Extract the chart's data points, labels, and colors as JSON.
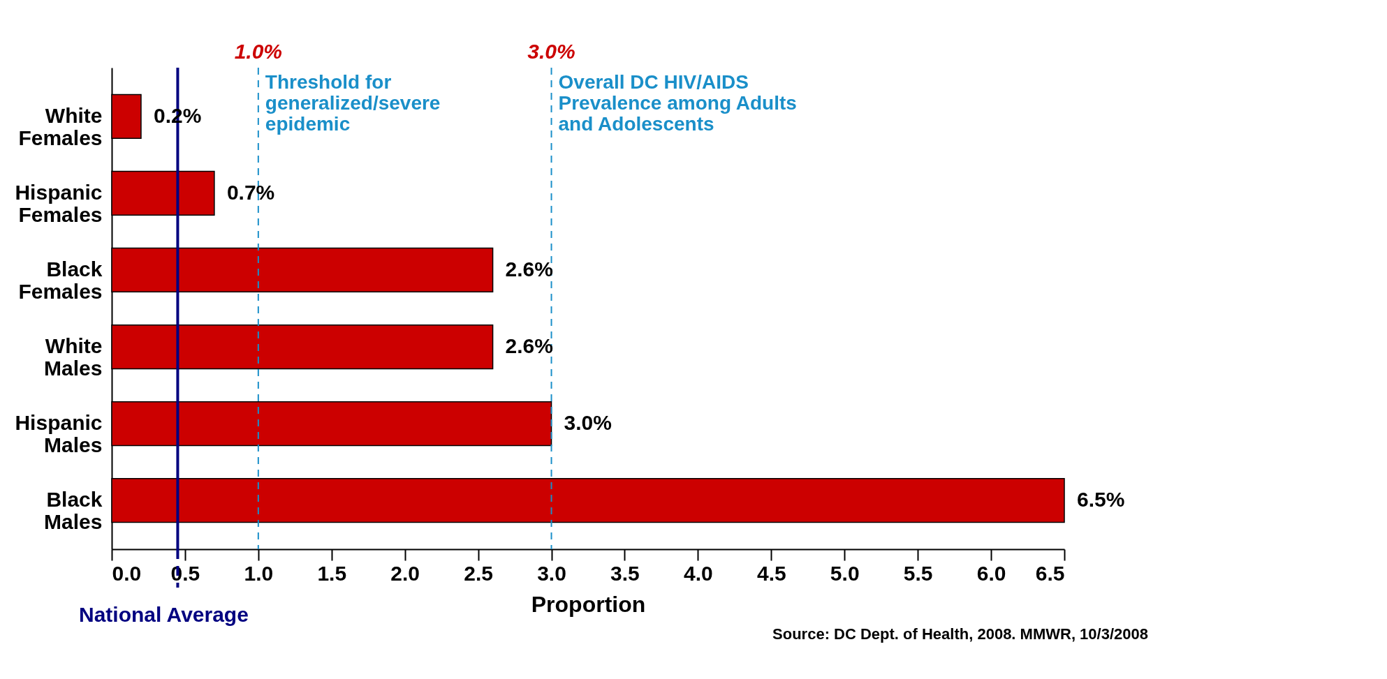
{
  "chart_data": {
    "type": "bar",
    "orientation": "horizontal",
    "categories": [
      "White Females",
      "Hispanic Females",
      "Black Females",
      "White Males",
      "Hispanic Males",
      "Black Males"
    ],
    "values": [
      0.2,
      0.7,
      2.6,
      2.6,
      3.0,
      6.5
    ],
    "value_labels": [
      "0.2%",
      "0.7%",
      "2.6%",
      "2.6%",
      "3.0%",
      "6.5%"
    ],
    "color": "#cc0000",
    "xlabel": "Proportion",
    "xlim": [
      0,
      6.5
    ],
    "xticks": [
      {
        "value": 0,
        "label": "0.0"
      },
      0.5,
      {
        "value": 1,
        "label": "1.0"
      },
      1.5,
      {
        "value": 2,
        "label": "2.0"
      },
      2.5,
      {
        "value": 3,
        "label": "3.0"
      },
      3.5,
      {
        "value": 4,
        "label": "4.0"
      },
      4.5,
      {
        "value": 5,
        "label": "5.0"
      },
      5.5,
      {
        "value": 6,
        "label": "6.0"
      },
      6.5
    ],
    "ref_lines": [
      {
        "axis": "x",
        "value": 0.45,
        "label": "National Average",
        "color": "#000080",
        "line_style": "solid"
      },
      {
        "axis": "x",
        "value": 1.0,
        "label": "Threshold for\ngeneralized/severe\nepidemic",
        "color": "#1a8fc9",
        "line_style": "dashed"
      },
      {
        "axis": "x",
        "value": 3.0,
        "label": "Overall DC HIV/AIDS\nPrevalence among Adults\nand Adolescents",
        "color": "#1a8fc9",
        "line_style": "dashed"
      }
    ],
    "annotations": [
      "1.0%",
      "3.0%",
      "Source: DC Dept. of Health, 2008. MMWR, 10/3/2008"
    ],
    "grid": false
  }
}
